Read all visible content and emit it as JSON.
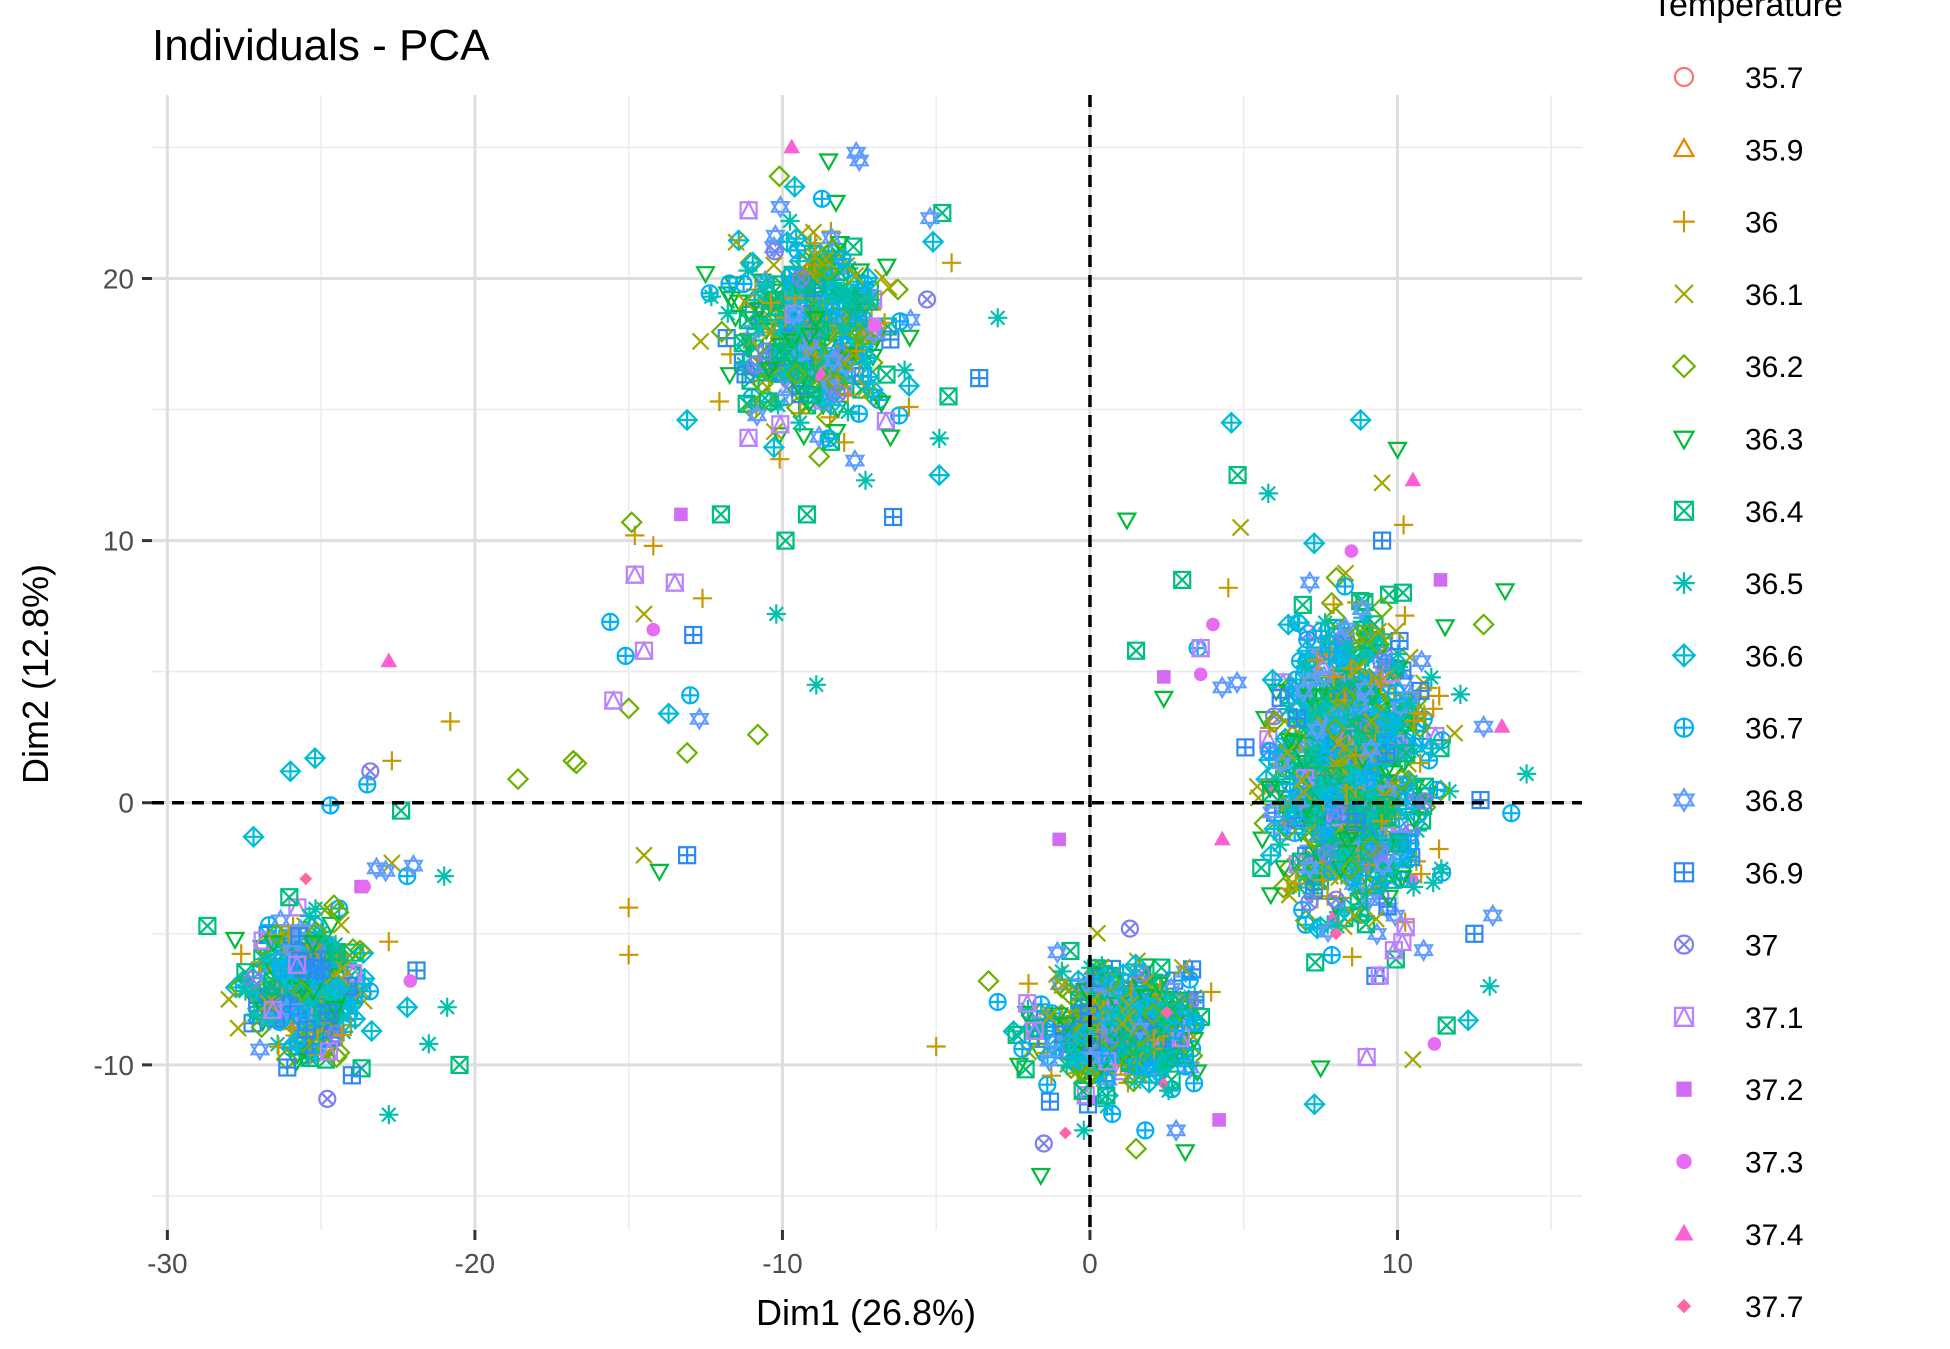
{
  "chart_data": {
    "type": "scatter",
    "title": "Individuals - PCA",
    "xlabel": "Dim1 (26.8%)",
    "ylabel": "Dim2 (12.8%)",
    "xlim": [
      -30.5,
      16
    ],
    "ylim": [
      -16.3,
      27
    ],
    "x_ticks": [
      -30,
      -20,
      -10,
      0,
      10
    ],
    "y_ticks": [
      -10,
      0,
      10,
      20
    ],
    "grid": true,
    "reference_lines": {
      "x": 0,
      "y": 0,
      "style": "dashed"
    },
    "legend": {
      "title": "Temperature",
      "placement": "right",
      "entries": [
        {
          "label": "35.7",
          "color": "#F8766D",
          "shape": "circle-open"
        },
        {
          "label": "35.9",
          "color": "#E58700",
          "shape": "triangle-open"
        },
        {
          "label": "36",
          "color": "#C99800",
          "shape": "plus"
        },
        {
          "label": "36.1",
          "color": "#A3A500",
          "shape": "cross"
        },
        {
          "label": "36.2",
          "color": "#6BB100",
          "shape": "diamond-open"
        },
        {
          "label": "36.3",
          "color": "#00BA38",
          "shape": "triangle-down-open"
        },
        {
          "label": "36.4",
          "color": "#00BF7D",
          "shape": "square-cross"
        },
        {
          "label": "36.5",
          "color": "#00C0AF",
          "shape": "asterisk"
        },
        {
          "label": "36.6",
          "color": "#00BCD8",
          "shape": "diamond-plus"
        },
        {
          "label": "36.7",
          "color": "#00B0F6",
          "shape": "circle-plus"
        },
        {
          "label": "36.8",
          "color": "#619CFF",
          "shape": "star-of-david"
        },
        {
          "label": "36.9",
          "color": "#2C8AF2",
          "shape": "square-plus"
        },
        {
          "label": "37",
          "color": "#7F7FF2",
          "shape": "circle-cross"
        },
        {
          "label": "37.1",
          "color": "#B983FF",
          "shape": "square-triangle"
        },
        {
          "label": "37.2",
          "color": "#D36CF5",
          "shape": "square-filled"
        },
        {
          "label": "37.3",
          "color": "#E76BF3",
          "shape": "circle-filled"
        },
        {
          "label": "37.4",
          "color": "#FD61D1",
          "shape": "triangle-filled"
        },
        {
          "label": "37.7",
          "color": "#FF67A4",
          "shape": "diamond-filled"
        }
      ]
    },
    "clusters": [
      {
        "name": "",
        "center": [
          -25.5,
          -7.0
        ],
        "spread": [
          1.3,
          2.0
        ],
        "approx_points": 450
      },
      {
        "name": "",
        "center": [
          -9.0,
          18.0
        ],
        "spread": [
          2.0,
          3.0
        ],
        "approx_points": 480
      },
      {
        "name": "",
        "center": [
          1.0,
          -8.5
        ],
        "spread": [
          2.0,
          1.8
        ],
        "approx_points": 550
      },
      {
        "name": "",
        "center": [
          8.5,
          1.5
        ],
        "spread": [
          2.0,
          4.5
        ],
        "approx_points": 1100
      }
    ],
    "series": [
      {
        "name": "35.7",
        "points": []
      },
      {
        "name": "35.9",
        "points": []
      },
      {
        "name": "36",
        "points": [
          [
            -20.8,
            3.1
          ],
          [
            -22.7,
            1.6
          ],
          [
            -15.0,
            -4.0
          ],
          [
            -15.0,
            -5.8
          ],
          [
            -14.8,
            10.2
          ],
          [
            -12.6,
            7.8
          ],
          [
            -4.5,
            20.6
          ],
          [
            -22.8,
            -5.3
          ],
          [
            -5,
            -9.3
          ],
          [
            4.5,
            8.2
          ],
          [
            10.2,
            10.6
          ],
          [
            -14.2,
            9.8
          ]
        ]
      },
      {
        "name": "36.1",
        "points": [
          [
            -28.0,
            -7.5
          ],
          [
            -27.7,
            -8.6
          ],
          [
            -14.5,
            -2.0
          ],
          [
            -14.5,
            7.2
          ],
          [
            -11.2,
            19.1
          ],
          [
            -22.7,
            -2.3
          ],
          [
            4.9,
            10.5
          ],
          [
            9.5,
            12.2
          ],
          [
            -2,
            -9.5
          ],
          [
            10.5,
            -9.8
          ]
        ]
      },
      {
        "name": "36.2",
        "points": [
          [
            -18.6,
            0.9
          ],
          [
            -16.8,
            1.6
          ],
          [
            -16.7,
            1.5
          ],
          [
            -13.1,
            1.9
          ],
          [
            -10.8,
            2.6
          ],
          [
            -15.0,
            3.6
          ],
          [
            -14.9,
            10.7
          ],
          [
            -10.1,
            23.9
          ],
          [
            -3.3,
            -6.8
          ],
          [
            1.5,
            -13.2
          ],
          [
            12.8,
            6.8
          ]
        ]
      },
      {
        "name": "36.3",
        "points": [
          [
            -14.0,
            -2.6
          ],
          [
            1.2,
            10.8
          ],
          [
            2.4,
            4.0
          ],
          [
            -12.5,
            20.2
          ],
          [
            10.0,
            13.5
          ],
          [
            13.5,
            8.1
          ],
          [
            -1.6,
            -14.2
          ],
          [
            3.1,
            -13.3
          ],
          [
            -27.8,
            -5.2
          ],
          [
            -8.5,
            24.5
          ],
          [
            7.5,
            -10.1
          ]
        ]
      },
      {
        "name": "36.4",
        "points": [
          [
            -20.5,
            -10.0
          ],
          [
            -28.7,
            -4.7
          ],
          [
            -12.0,
            11.0
          ],
          [
            -9.9,
            10.0
          ],
          [
            -9.2,
            11.0
          ],
          [
            -4.8,
            22.5
          ],
          [
            -4.6,
            15.5
          ],
          [
            3.0,
            8.5
          ],
          [
            1.5,
            5.8
          ],
          [
            4.8,
            12.5
          ],
          [
            11.6,
            -8.5
          ],
          [
            -22.4,
            -0.3
          ]
        ]
      },
      {
        "name": "36.5",
        "points": [
          [
            -22.8,
            -11.9
          ],
          [
            -21.5,
            -9.2
          ],
          [
            -20.9,
            -7.8
          ],
          [
            -21.0,
            -2.8
          ],
          [
            -10.2,
            7.2
          ],
          [
            -8.9,
            4.5
          ],
          [
            -3.0,
            18.5
          ],
          [
            -7.3,
            12.3
          ],
          [
            -4.9,
            13.9
          ],
          [
            -0.2,
            -12.5
          ],
          [
            13.0,
            -7.0
          ],
          [
            14.2,
            1.1
          ],
          [
            5.8,
            11.8
          ]
        ]
      },
      {
        "name": "36.6",
        "points": [
          [
            -25.2,
            1.7
          ],
          [
            -26.0,
            1.2
          ],
          [
            -27.2,
            -1.3
          ],
          [
            -13.7,
            3.4
          ],
          [
            -13.1,
            14.6
          ],
          [
            -4.9,
            12.5
          ],
          [
            -5.1,
            21.4
          ],
          [
            4.6,
            14.5
          ],
          [
            8.8,
            14.6
          ],
          [
            7.3,
            -11.5
          ],
          [
            12.3,
            -8.3
          ],
          [
            -9.6,
            23.5
          ],
          [
            -22.2,
            -7.8
          ]
        ]
      },
      {
        "name": "36.7",
        "points": [
          [
            -24.7,
            -0.1
          ],
          [
            -23.5,
            0.7
          ],
          [
            -22.2,
            -2.8
          ],
          [
            -15.6,
            6.9
          ],
          [
            -15.1,
            5.6
          ],
          [
            -13.0,
            4.1
          ],
          [
            -3.0,
            -7.6
          ],
          [
            -2.2,
            -9.4
          ],
          [
            3.5,
            5.9
          ],
          [
            13.7,
            -0.4
          ],
          [
            -8.5,
            13.9
          ],
          [
            1.8,
            -12.5
          ]
        ]
      },
      {
        "name": "36.8",
        "points": [
          [
            -7.6,
            24.8
          ],
          [
            -12.7,
            3.2
          ],
          [
            4.3,
            4.4
          ],
          [
            12.8,
            2.9
          ],
          [
            -23.2,
            -2.5
          ],
          [
            -22.9,
            -2.6
          ],
          [
            -22.0,
            -2.4
          ],
          [
            -7.5,
            24.5
          ],
          [
            13.1,
            -4.3
          ],
          [
            2.8,
            -12.5
          ],
          [
            -5.2,
            22.3
          ]
        ]
      },
      {
        "name": "36.9",
        "points": [
          [
            -6.4,
            10.9
          ],
          [
            -13.1,
            -2.0
          ],
          [
            -12.9,
            6.4
          ],
          [
            -3.6,
            16.2
          ],
          [
            -21.9,
            -6.4
          ],
          [
            -24.0,
            -10.4
          ],
          [
            -26.1,
            -10.1
          ],
          [
            12.7,
            0.1
          ],
          [
            12.5,
            -5.0
          ],
          [
            -1.3,
            -11.4
          ],
          [
            9.5,
            10.0
          ]
        ]
      },
      {
        "name": "37",
        "points": [
          [
            -23.4,
            1.2
          ],
          [
            -24.8,
            -11.3
          ],
          [
            -1.5,
            -13.0
          ],
          [
            -9.4,
            20.0
          ],
          [
            8.0,
            -3.7
          ],
          [
            -5.3,
            19.2
          ],
          [
            1.3,
            -4.8
          ]
        ]
      },
      {
        "name": "37.1",
        "points": [
          [
            -15.5,
            3.9
          ],
          [
            -14.8,
            8.7
          ],
          [
            -14.5,
            5.8
          ],
          [
            -11.1,
            22.6
          ],
          [
            -13.5,
            8.4
          ],
          [
            9.0,
            -9.7
          ],
          [
            -1.8,
            -8.7
          ],
          [
            3.6,
            5.9
          ]
        ]
      },
      {
        "name": "37.2",
        "points": [
          [
            -1.0,
            -1.4
          ],
          [
            2.4,
            4.8
          ],
          [
            4.2,
            -12.1
          ],
          [
            -13.3,
            11.0
          ],
          [
            -23.7,
            -3.2
          ],
          [
            11.4,
            8.5
          ]
        ]
      },
      {
        "name": "37.3",
        "points": [
          [
            4.0,
            6.8
          ],
          [
            11.2,
            -9.2
          ],
          [
            -14.2,
            6.6
          ],
          [
            -23.6,
            -3.2
          ],
          [
            -22.1,
            -6.8
          ],
          [
            -7.0,
            18.2
          ],
          [
            8.5,
            9.6
          ],
          [
            3.6,
            4.9
          ]
        ]
      },
      {
        "name": "37.4",
        "points": [
          [
            -22.8,
            5.4
          ],
          [
            -9.7,
            25.0
          ],
          [
            10.5,
            12.3
          ],
          [
            13.4,
            2.9
          ],
          [
            4.3,
            -1.4
          ]
        ]
      },
      {
        "name": "37.7",
        "points": [
          [
            -25.5,
            -2.9
          ],
          [
            -0.8,
            -12.6
          ],
          [
            2.5,
            -8.0
          ],
          [
            8.0,
            -5.0
          ]
        ]
      }
    ]
  }
}
